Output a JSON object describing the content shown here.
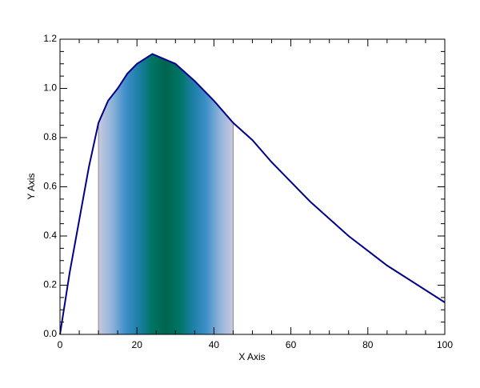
{
  "chart_data": {
    "type": "line",
    "x_label": "X Axis",
    "y_label": "Y Axis",
    "x": [
      0,
      1,
      2.5,
      5,
      7.5,
      10,
      12.5,
      15,
      17.5,
      20,
      24,
      30,
      35,
      40,
      45,
      50,
      55,
      60,
      65,
      70,
      75,
      80,
      85,
      90,
      95,
      100
    ],
    "series": [
      {
        "color": "#00008b",
        "values": [
          0,
          0.1,
          0.25,
          0.465,
          0.68,
          0.86,
          0.95,
          1.0,
          1.06,
          1.1,
          1.14,
          1.1,
          1.03,
          0.95,
          0.86,
          0.79,
          0.7,
          0.62,
          0.54,
          0.47,
          0.4,
          0.34,
          0.28,
          0.23,
          0.18,
          0.13
        ]
      }
    ],
    "shade": {
      "x": [
        10,
        45
      ],
      "colors": [
        "#c9c9de",
        "#8fb3d9",
        "#3f8fc9",
        "#1b7fa6",
        "#007463",
        "#006450",
        "#007463",
        "#1b7fa6",
        "#3f8fc9",
        "#8fb3d9",
        "#c9c9de"
      ]
    },
    "xlim": [
      0,
      100
    ],
    "xticks": [
      0,
      20,
      40,
      60,
      80,
      100
    ],
    "ylim": [
      0,
      1.2
    ],
    "yticks": [
      {
        "value": 0,
        "label": "0.0"
      },
      0.2,
      0.4,
      0.6,
      0.8,
      {
        "value": 1,
        "label": "1.0"
      },
      1.2
    ],
    "minor_divisions": 4
  }
}
